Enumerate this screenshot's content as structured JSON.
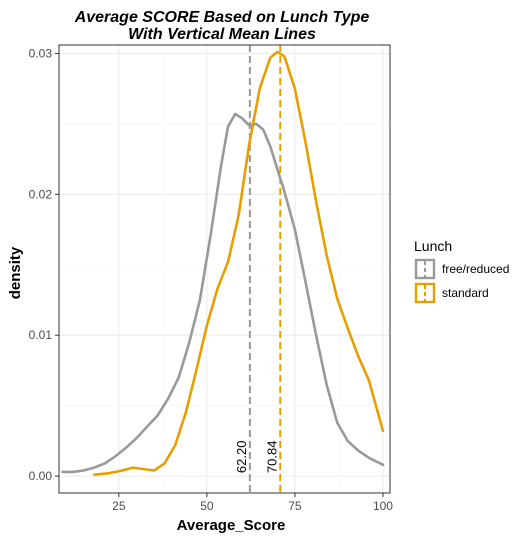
{
  "chart_data": {
    "type": "line",
    "subtype": "density",
    "title": [
      "Average SCORE Based on Lunch Type",
      "With Vertical Mean Lines"
    ],
    "xlabel": "Average_Score",
    "ylabel": "density",
    "xlim": [
      8,
      102
    ],
    "ylim": [
      -0.0012,
      0.0306
    ],
    "x_ticks": [
      25,
      50,
      75,
      100
    ],
    "y_ticks": [
      0.0,
      0.01,
      0.02,
      0.03
    ],
    "y_tick_labels": [
      "0.00",
      "0.01",
      "0.02",
      "0.03"
    ],
    "grid": true,
    "legend": {
      "title": "Lunch",
      "position": "right"
    },
    "series": [
      {
        "name": "free/reduced",
        "color": "#999999",
        "mean": 62.2,
        "mean_label": "62.20",
        "points": [
          [
            9,
            0.0003
          ],
          [
            12,
            0.0003
          ],
          [
            15,
            0.0004
          ],
          [
            18,
            0.0006
          ],
          [
            21,
            0.0009
          ],
          [
            24,
            0.0014
          ],
          [
            27,
            0.002
          ],
          [
            30,
            0.0027
          ],
          [
            33,
            0.0035
          ],
          [
            36,
            0.0043
          ],
          [
            39,
            0.0055
          ],
          [
            42,
            0.007
          ],
          [
            45,
            0.0095
          ],
          [
            48,
            0.0125
          ],
          [
            51,
            0.017
          ],
          [
            54,
            0.022
          ],
          [
            56,
            0.0248
          ],
          [
            58,
            0.0257
          ],
          [
            60,
            0.0254
          ],
          [
            62,
            0.0249
          ],
          [
            64,
            0.025
          ],
          [
            66,
            0.0246
          ],
          [
            68,
            0.0234
          ],
          [
            70,
            0.0218
          ],
          [
            72,
            0.0202
          ],
          [
            75,
            0.0175
          ],
          [
            78,
            0.0138
          ],
          [
            81,
            0.01
          ],
          [
            84,
            0.0065
          ],
          [
            87,
            0.0038
          ],
          [
            90,
            0.0025
          ],
          [
            93,
            0.0018
          ],
          [
            96,
            0.0013
          ],
          [
            100,
            0.0008
          ]
        ]
      },
      {
        "name": "standard",
        "color": "#E69F00",
        "mean": 70.84,
        "mean_label": "70.84",
        "points": [
          [
            18,
            0.0001
          ],
          [
            22,
            0.0002
          ],
          [
            26,
            0.0004
          ],
          [
            29,
            0.0006
          ],
          [
            32,
            0.0005
          ],
          [
            35,
            0.0004
          ],
          [
            38,
            0.0009
          ],
          [
            41,
            0.0022
          ],
          [
            44,
            0.0045
          ],
          [
            47,
            0.0075
          ],
          [
            50,
            0.0107
          ],
          [
            53,
            0.0133
          ],
          [
            56,
            0.0152
          ],
          [
            59,
            0.0185
          ],
          [
            62,
            0.0235
          ],
          [
            65,
            0.0275
          ],
          [
            68,
            0.0297
          ],
          [
            70,
            0.0301
          ],
          [
            72,
            0.0298
          ],
          [
            75,
            0.0275
          ],
          [
            78,
            0.0237
          ],
          [
            81,
            0.0195
          ],
          [
            84,
            0.0157
          ],
          [
            87,
            0.0126
          ],
          [
            90,
            0.0105
          ],
          [
            93,
            0.0085
          ],
          [
            96,
            0.0068
          ],
          [
            100,
            0.0032
          ]
        ]
      }
    ]
  }
}
